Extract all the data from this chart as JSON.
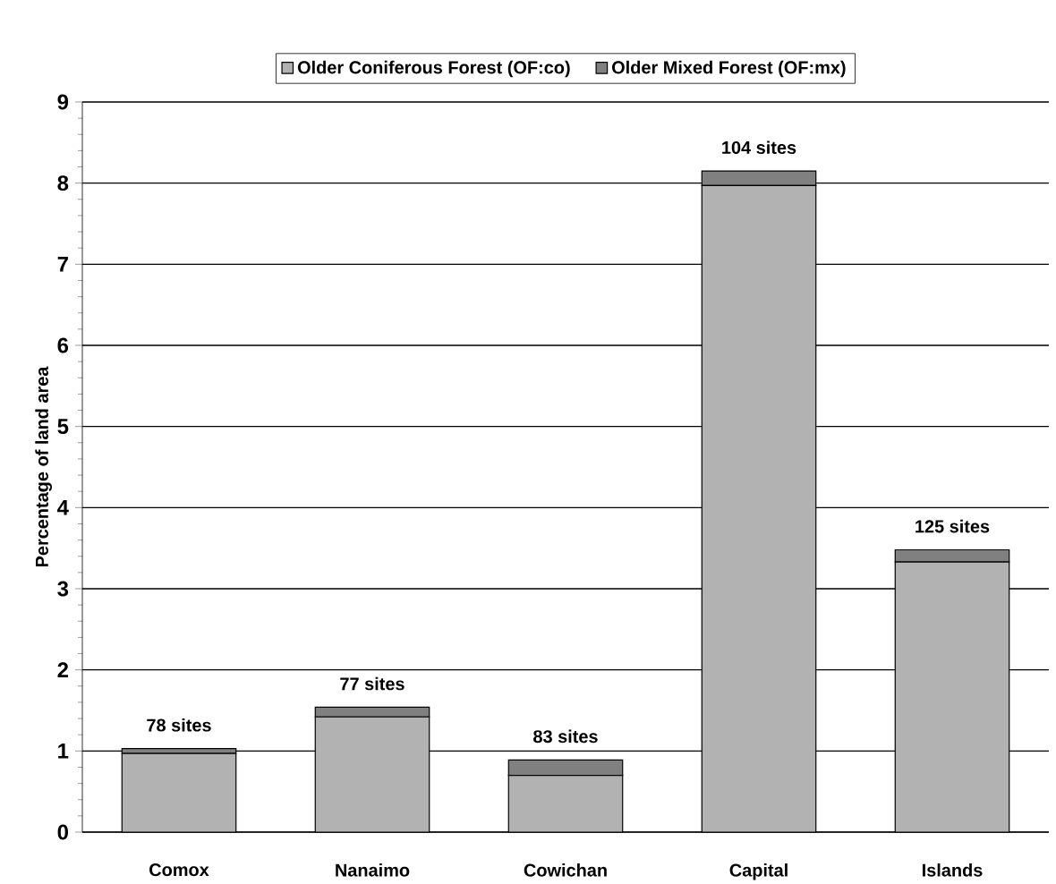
{
  "chart_data": {
    "type": "bar",
    "stacked": true,
    "ylabel": "Percentage of land area",
    "categories": [
      "Comox",
      "Nanaimo",
      "Cowichan",
      "Capital",
      "Islands"
    ],
    "series": [
      {
        "name": "Older Coniferous Forest (OF:co)",
        "color": "#b2b2b2",
        "values": [
          0.97,
          1.42,
          0.7,
          7.97,
          3.33
        ]
      },
      {
        "name": "Older Mixed Forest (OF:mx)",
        "color": "#808080",
        "values": [
          0.06,
          0.12,
          0.19,
          0.18,
          0.15
        ]
      }
    ],
    "ylim": [
      0,
      9
    ],
    "yticks": [
      0,
      1,
      2,
      3,
      4,
      5,
      6,
      7,
      8,
      9
    ],
    "grid": "y",
    "legend": "top",
    "annotations": [
      {
        "text": "78 sites",
        "x": "Comox",
        "y": 1.03
      },
      {
        "text": "77 sites",
        "x": "Nanaimo",
        "y": 1.54
      },
      {
        "text": "83 sites",
        "x": "Cowichan",
        "y": 0.89
      },
      {
        "text": "104 sites",
        "x": "Capital",
        "y": 8.15
      },
      {
        "text": "125 sites",
        "x": "Islands",
        "y": 3.48
      }
    ]
  }
}
